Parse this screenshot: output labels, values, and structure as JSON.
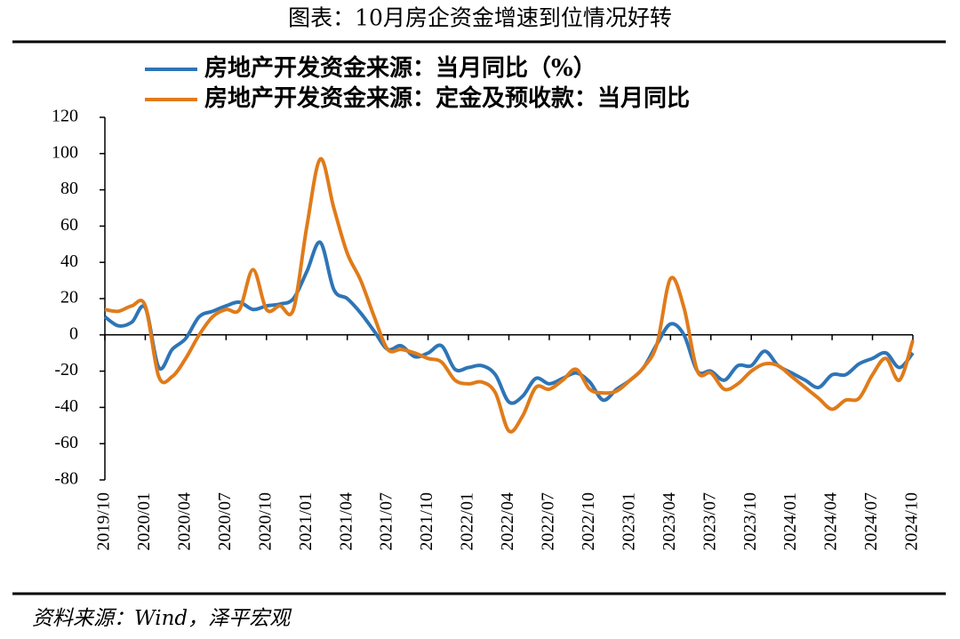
{
  "chart_data": {
    "type": "line",
    "title": "图表：10月房企资金增速到位情况好转",
    "source": "资料来源：Wind，泽平宏观",
    "categories": [
      "2019/10",
      null,
      null,
      "2020/01",
      null,
      null,
      "2020/04",
      null,
      null,
      "2020/07",
      null,
      null,
      "2020/10",
      null,
      null,
      "2021/01",
      null,
      null,
      "2021/04",
      null,
      null,
      "2021/07",
      null,
      null,
      "2021/10",
      null,
      null,
      "2022/01",
      null,
      null,
      "2022/04",
      null,
      null,
      "2022/07",
      null,
      null,
      "2022/10",
      null,
      null,
      "2023/01",
      null,
      null,
      "2023/04",
      null,
      null,
      "2023/07",
      null,
      null,
      "2023/10",
      null,
      null,
      "2024/01",
      null,
      null,
      "2024/04",
      null,
      null,
      "2024/07",
      null,
      null,
      "2024/10"
    ],
    "series": [
      {
        "name": "房地产开发资金来源：当月同比（%）",
        "color": "#2e75b6",
        "values": [
          10,
          5,
          7,
          15,
          -18,
          -8,
          -2,
          10,
          13,
          16,
          18,
          14,
          16,
          17,
          20,
          35,
          51,
          25,
          20,
          12,
          2,
          -8,
          -6,
          -12,
          -10,
          -6,
          -19,
          -18,
          -17,
          -22,
          -37,
          -34,
          -24,
          -27,
          -24,
          -21,
          -26,
          -36,
          -30,
          -25,
          -18,
          -5,
          6,
          0,
          -20,
          -20,
          -25,
          -17,
          -17,
          -9,
          -17,
          -21,
          -25,
          -29,
          -22,
          -22,
          -16,
          -13,
          -10,
          -18,
          -10
        ]
      },
      {
        "name": "房地产开发资金来源：定金及预收款：当月同比",
        "color": "#e07b1a",
        "values": [
          14,
          13,
          16,
          16,
          -23,
          -23,
          -13,
          0,
          10,
          14,
          14,
          36,
          14,
          16,
          14,
          60,
          97,
          70,
          45,
          30,
          10,
          -8,
          -8,
          -10,
          -13,
          -15,
          -25,
          -27,
          -26,
          -32,
          -53,
          -45,
          -29,
          -30,
          -25,
          -19,
          -30,
          -32,
          -31,
          -25,
          -18,
          -5,
          31,
          15,
          -20,
          -21,
          -30,
          -27,
          -20,
          -16,
          -17,
          -23,
          -29,
          -35,
          -41,
          -36,
          -35,
          -22,
          -13,
          -25,
          -3
        ]
      }
    ],
    "ylim": [
      -80,
      120
    ],
    "yticks": [
      -80,
      -60,
      -40,
      -20,
      0,
      20,
      40,
      60,
      80,
      100,
      120
    ]
  }
}
